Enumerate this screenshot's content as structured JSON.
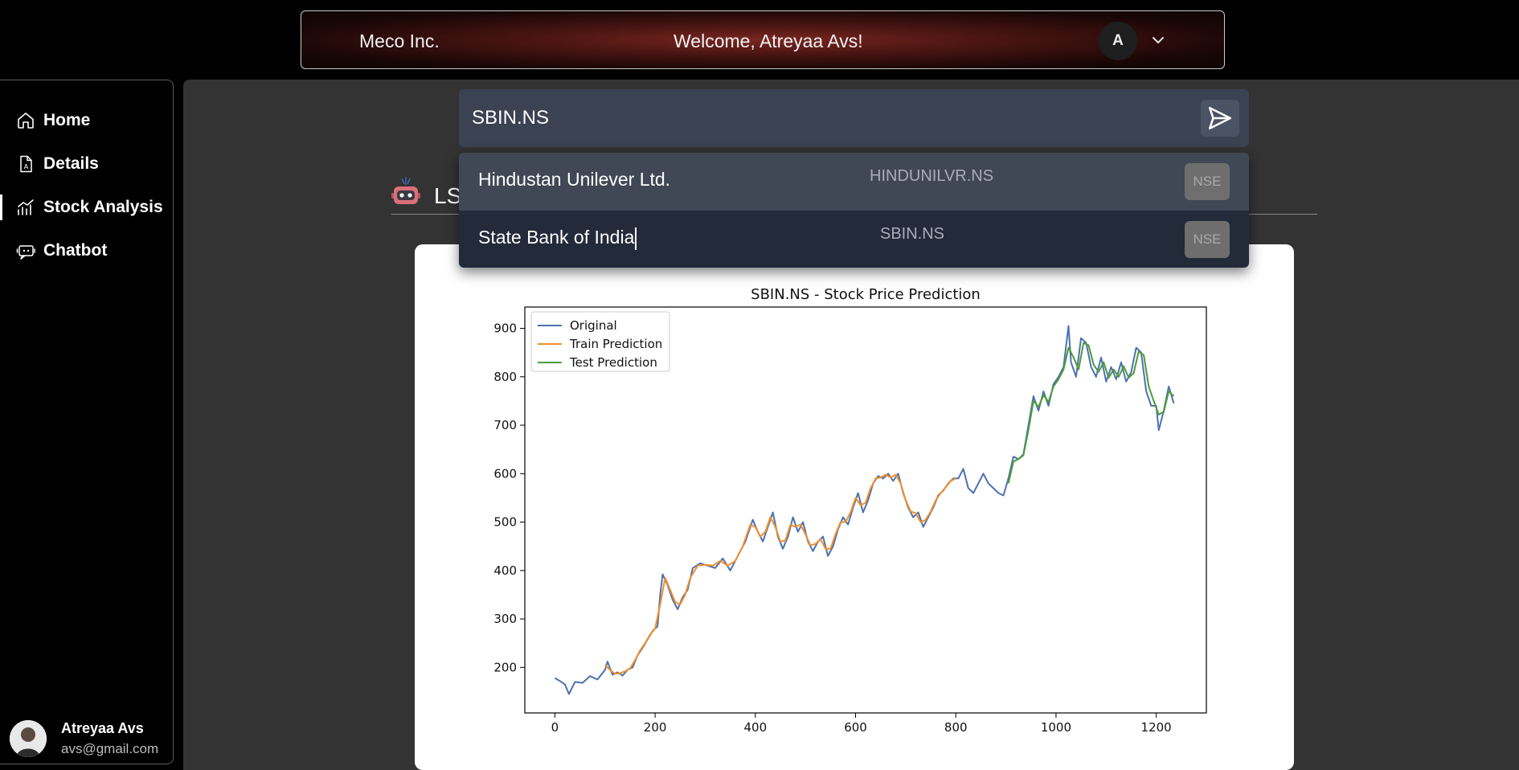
{
  "header": {
    "brand": "Meco Inc.",
    "welcome": "Welcome, Atreyaa Avs!",
    "avatar_initial": "A"
  },
  "sidebar": {
    "items": [
      {
        "label": "Home",
        "icon": "home-icon"
      },
      {
        "label": "Details",
        "icon": "document-icon"
      },
      {
        "label": "Stock Analysis",
        "icon": "chart-icon",
        "active": true
      },
      {
        "label": "Chatbot",
        "icon": "chatbot-icon"
      }
    ],
    "profile": {
      "name": "Atreyaa Avs",
      "email": "avs@gmail.com"
    }
  },
  "search": {
    "value": "SBIN.NS"
  },
  "suggestions": [
    {
      "name": "Hindustan Unilever Ltd.",
      "symbol": "HINDUNILVR.NS",
      "exchange": "NSE"
    },
    {
      "name": "State Bank of India",
      "symbol": "SBIN.NS",
      "exchange": "NSE"
    }
  ],
  "section": {
    "title": "LS"
  },
  "colors": {
    "original": "#4c72b0",
    "train": "#f28e2b",
    "test": "#4e9a3a",
    "accent": "#7a2620"
  },
  "chart_data": {
    "type": "line",
    "title": "SBIN.NS - Stock Price Prediction",
    "xlabel": "",
    "ylabel": "",
    "xlim": [
      -60,
      1300
    ],
    "ylim": [
      106,
      944
    ],
    "xticks": [
      0,
      200,
      400,
      600,
      800,
      1000,
      1200
    ],
    "yticks": [
      200,
      300,
      400,
      500,
      600,
      700,
      800,
      900
    ],
    "legend_position": "top-left",
    "series": [
      {
        "name": "Original",
        "points": [
          [
            0,
            178
          ],
          [
            10,
            172
          ],
          [
            20,
            165
          ],
          [
            28,
            145
          ],
          [
            40,
            170
          ],
          [
            55,
            168
          ],
          [
            70,
            182
          ],
          [
            85,
            175
          ],
          [
            100,
            195
          ],
          [
            105,
            212
          ],
          [
            115,
            185
          ],
          [
            125,
            190
          ],
          [
            135,
            183
          ],
          [
            145,
            195
          ],
          [
            155,
            200
          ],
          [
            165,
            225
          ],
          [
            175,
            240
          ],
          [
            185,
            258
          ],
          [
            195,
            275
          ],
          [
            205,
            285
          ],
          [
            210,
            350
          ],
          [
            215,
            392
          ],
          [
            225,
            370
          ],
          [
            235,
            340
          ],
          [
            245,
            320
          ],
          [
            255,
            345
          ],
          [
            265,
            360
          ],
          [
            275,
            405
          ],
          [
            290,
            415
          ],
          [
            305,
            410
          ],
          [
            320,
            405
          ],
          [
            335,
            425
          ],
          [
            350,
            400
          ],
          [
            365,
            430
          ],
          [
            380,
            460
          ],
          [
            395,
            505
          ],
          [
            405,
            480
          ],
          [
            415,
            460
          ],
          [
            425,
            490
          ],
          [
            435,
            520
          ],
          [
            445,
            470
          ],
          [
            455,
            445
          ],
          [
            465,
            470
          ],
          [
            475,
            510
          ],
          [
            485,
            480
          ],
          [
            495,
            500
          ],
          [
            505,
            460
          ],
          [
            515,
            440
          ],
          [
            525,
            460
          ],
          [
            535,
            470
          ],
          [
            545,
            430
          ],
          [
            555,
            450
          ],
          [
            565,
            485
          ],
          [
            575,
            510
          ],
          [
            585,
            495
          ],
          [
            595,
            530
          ],
          [
            605,
            560
          ],
          [
            615,
            520
          ],
          [
            625,
            545
          ],
          [
            635,
            580
          ],
          [
            645,
            595
          ],
          [
            655,
            590
          ],
          [
            665,
            600
          ],
          [
            675,
            585
          ],
          [
            685,
            600
          ],
          [
            695,
            560
          ],
          [
            705,
            530
          ],
          [
            715,
            510
          ],
          [
            725,
            520
          ],
          [
            735,
            490
          ],
          [
            745,
            510
          ],
          [
            755,
            530
          ],
          [
            765,
            555
          ],
          [
            775,
            565
          ],
          [
            785,
            580
          ],
          [
            795,
            590
          ],
          [
            805,
            590
          ],
          [
            815,
            610
          ],
          [
            825,
            570
          ],
          [
            835,
            560
          ],
          [
            845,
            580
          ],
          [
            855,
            600
          ],
          [
            865,
            580
          ],
          [
            875,
            570
          ],
          [
            885,
            560
          ],
          [
            895,
            555
          ],
          [
            905,
            590
          ],
          [
            915,
            635
          ],
          [
            925,
            630
          ],
          [
            935,
            640
          ],
          [
            945,
            700
          ],
          [
            955,
            760
          ],
          [
            965,
            730
          ],
          [
            975,
            770
          ],
          [
            985,
            740
          ],
          [
            995,
            785
          ],
          [
            1005,
            800
          ],
          [
            1015,
            820
          ],
          [
            1025,
            905
          ],
          [
            1030,
            830
          ],
          [
            1040,
            800
          ],
          [
            1050,
            880
          ],
          [
            1060,
            870
          ],
          [
            1070,
            820
          ],
          [
            1080,
            800
          ],
          [
            1090,
            840
          ],
          [
            1100,
            790
          ],
          [
            1110,
            820
          ],
          [
            1120,
            795
          ],
          [
            1130,
            830
          ],
          [
            1140,
            790
          ],
          [
            1150,
            810
          ],
          [
            1160,
            860
          ],
          [
            1170,
            850
          ],
          [
            1180,
            770
          ],
          [
            1190,
            740
          ],
          [
            1200,
            740
          ],
          [
            1205,
            690
          ],
          [
            1215,
            730
          ],
          [
            1225,
            780
          ],
          [
            1235,
            745
          ]
        ]
      },
      {
        "name": "Train Prediction",
        "points": [
          [
            100,
            205
          ],
          [
            110,
            195
          ],
          [
            120,
            187
          ],
          [
            130,
            188
          ],
          [
            140,
            192
          ],
          [
            150,
            198
          ],
          [
            160,
            215
          ],
          [
            170,
            235
          ],
          [
            180,
            250
          ],
          [
            190,
            268
          ],
          [
            200,
            280
          ],
          [
            210,
            330
          ],
          [
            220,
            385
          ],
          [
            230,
            360
          ],
          [
            240,
            335
          ],
          [
            250,
            330
          ],
          [
            260,
            350
          ],
          [
            270,
            385
          ],
          [
            285,
            410
          ],
          [
            300,
            412
          ],
          [
            315,
            410
          ],
          [
            330,
            420
          ],
          [
            345,
            410
          ],
          [
            360,
            420
          ],
          [
            375,
            450
          ],
          [
            390,
            495
          ],
          [
            400,
            490
          ],
          [
            410,
            470
          ],
          [
            420,
            480
          ],
          [
            430,
            510
          ],
          [
            440,
            490
          ],
          [
            450,
            460
          ],
          [
            460,
            462
          ],
          [
            470,
            495
          ],
          [
            480,
            490
          ],
          [
            490,
            495
          ],
          [
            500,
            475
          ],
          [
            510,
            452
          ],
          [
            520,
            455
          ],
          [
            530,
            465
          ],
          [
            540,
            445
          ],
          [
            550,
            445
          ],
          [
            560,
            475
          ],
          [
            570,
            500
          ],
          [
            580,
            500
          ],
          [
            590,
            520
          ],
          [
            600,
            550
          ],
          [
            610,
            535
          ],
          [
            620,
            540
          ],
          [
            630,
            570
          ],
          [
            640,
            590
          ],
          [
            650,
            592
          ],
          [
            660,
            598
          ],
          [
            670,
            592
          ],
          [
            680,
            598
          ],
          [
            690,
            580
          ],
          [
            700,
            545
          ],
          [
            710,
            522
          ],
          [
            720,
            518
          ],
          [
            730,
            500
          ],
          [
            740,
            505
          ],
          [
            750,
            522
          ],
          [
            760,
            545
          ],
          [
            770,
            560
          ],
          [
            780,
            572
          ],
          [
            790,
            585
          ],
          [
            800,
            590
          ]
        ]
      },
      {
        "name": "Test Prediction",
        "points": [
          [
            905,
            580
          ],
          [
            915,
            625
          ],
          [
            925,
            630
          ],
          [
            935,
            638
          ],
          [
            945,
            690
          ],
          [
            955,
            750
          ],
          [
            965,
            738
          ],
          [
            975,
            762
          ],
          [
            985,
            748
          ],
          [
            995,
            780
          ],
          [
            1005,
            795
          ],
          [
            1015,
            815
          ],
          [
            1025,
            860
          ],
          [
            1035,
            840
          ],
          [
            1045,
            815
          ],
          [
            1055,
            870
          ],
          [
            1065,
            865
          ],
          [
            1075,
            825
          ],
          [
            1085,
            810
          ],
          [
            1095,
            830
          ],
          [
            1105,
            798
          ],
          [
            1115,
            815
          ],
          [
            1125,
            800
          ],
          [
            1135,
            822
          ],
          [
            1145,
            798
          ],
          [
            1155,
            808
          ],
          [
            1165,
            852
          ],
          [
            1175,
            845
          ],
          [
            1185,
            780
          ],
          [
            1195,
            750
          ],
          [
            1205,
            722
          ],
          [
            1215,
            728
          ],
          [
            1225,
            770
          ],
          [
            1235,
            760
          ]
        ]
      }
    ]
  }
}
